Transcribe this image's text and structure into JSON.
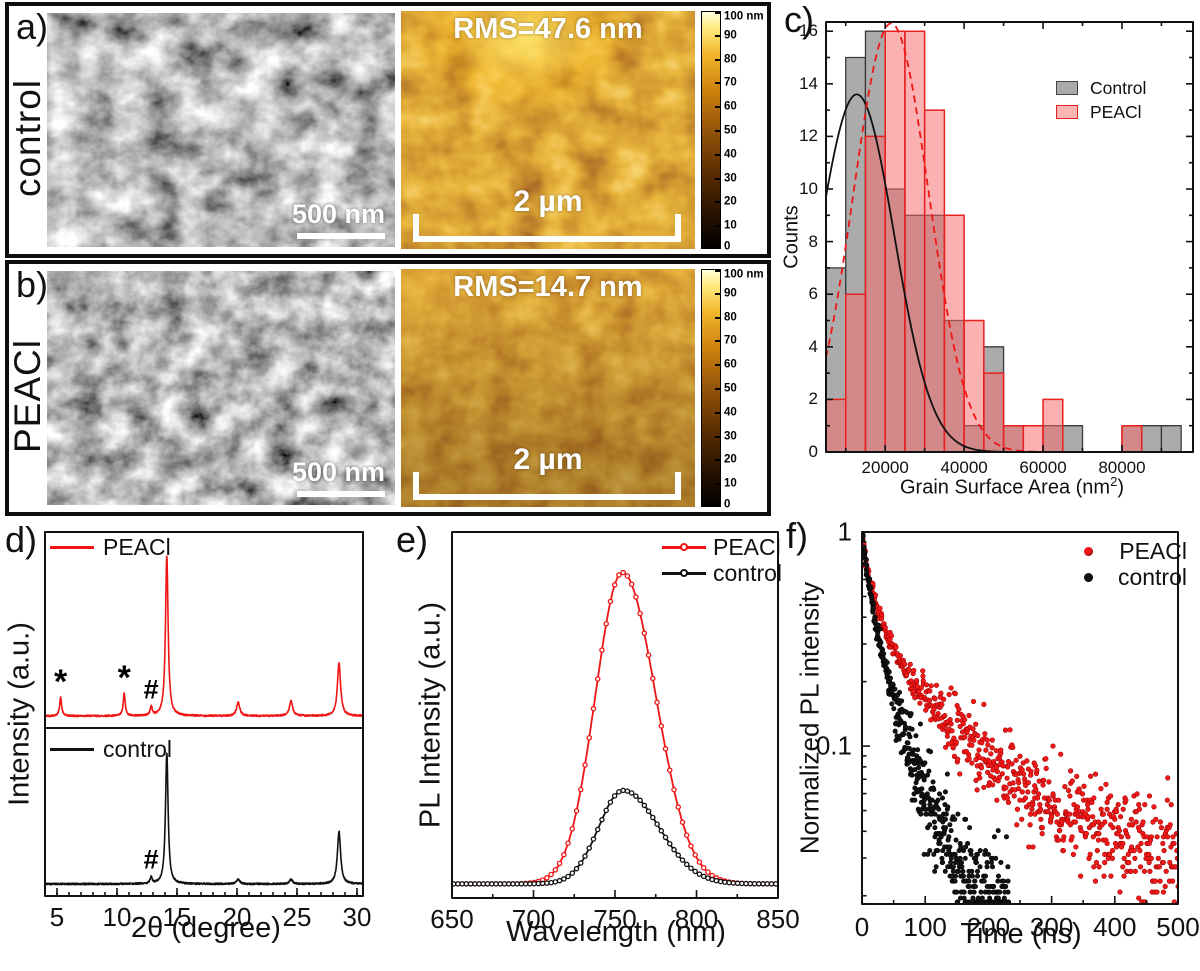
{
  "figure": {
    "background": "#ffffff",
    "accent_red": "#f01515",
    "bar_gray": "#a9a9a9",
    "bar_pink": "#f9b4b4"
  },
  "panels": {
    "a": {
      "letter": "a)",
      "side_label": "control",
      "sem_scalebar": "500 nm",
      "afm_rms": "RMS=47.6 nm",
      "afm_scalebar": "2 µm"
    },
    "b": {
      "letter": "b)",
      "side_label": "PEACl",
      "sem_scalebar": "500 nm",
      "afm_rms": "RMS=14.7 nm",
      "afm_scalebar": "2 µm"
    },
    "colorbar": {
      "ticks": [
        "100 nm",
        "90",
        "80",
        "70",
        "60",
        "50",
        "40",
        "30",
        "20",
        "10",
        "0"
      ]
    },
    "c": {
      "letter": "c)",
      "ylabel": "Counts",
      "xlabel_pre": "Grain Surface Area (nm",
      "xlabel_sup": "2",
      "xlabel_post": ")",
      "legend": [
        "Control",
        "PEACl"
      ]
    },
    "d": {
      "letter": "d)",
      "ylabel": "Intensity (a.u.)",
      "xlabel": "2θ (degree)",
      "legend_top": "PEACl",
      "legend_bottom": "control"
    },
    "e": {
      "letter": "e)",
      "ylabel": "PL Intensity (a.u.)",
      "xlabel": "Wavelength (nm)",
      "legend": [
        "PEACl",
        "control"
      ]
    },
    "f": {
      "letter": "f)",
      "ylabel": "Normalized PL intensity",
      "xlabel": "Time (ns)",
      "legend": [
        "PEACl",
        "control"
      ]
    }
  },
  "chart_data": [
    {
      "panel": "c",
      "type": "bar",
      "subtype": "histogram-with-gaussian-fits",
      "title": "",
      "xlabel": "Grain Surface Area (nm2)",
      "ylabel": "Counts",
      "bin_start": 5000,
      "bin_width": 5000,
      "series": [
        {
          "name": "Control",
          "color": "#a9a9a9",
          "counts": [
            7,
            15,
            16,
            10,
            9,
            9,
            5,
            1,
            4,
            1,
            0,
            1,
            1,
            0,
            0,
            1,
            1,
            1
          ]
        },
        {
          "name": "PEACl",
          "color": "#f9b4b4",
          "counts": [
            2,
            6,
            12,
            16,
            16,
            13,
            9,
            5,
            3,
            1,
            1,
            2,
            0,
            0,
            0,
            1,
            0,
            0
          ]
        }
      ],
      "fits": [
        {
          "name": "Control",
          "color": "#111111",
          "style": "solid",
          "mu": 12800,
          "sigma": 9500,
          "amp": 13.6
        },
        {
          "name": "PEACl",
          "color": "#f01515",
          "style": "dashed",
          "mu": 21500,
          "sigma": 9500,
          "amp": 16.3
        }
      ],
      "xticks": [
        20000,
        40000,
        60000,
        80000
      ],
      "xminors": [
        10000,
        30000,
        50000,
        70000,
        90000
      ],
      "yticks": [
        0,
        2,
        4,
        6,
        8,
        10,
        12,
        14,
        16
      ],
      "xlim": [
        5000,
        98000
      ],
      "ylim": [
        0,
        16.35
      ],
      "legend_pos": "upper-right",
      "grid": false
    },
    {
      "panel": "d",
      "type": "line",
      "subtype": "xrd-stacked",
      "xlabel": "2θ (degree)",
      "ylabel": "Intensity (a.u.)",
      "xticks": [
        5,
        10,
        15,
        20,
        25,
        30
      ],
      "xlim": [
        4,
        30.5
      ],
      "series": [
        {
          "name": "PEACl",
          "color": "#f01515",
          "panel_pos": "top",
          "peaks": [
            {
              "x": 5.3,
              "h": 0.115,
              "mark": "*"
            },
            {
              "x": 10.6,
              "h": 0.14,
              "mark": "*"
            },
            {
              "x": 12.85,
              "h": 0.055,
              "mark": "#"
            },
            {
              "x": 14.15,
              "h": 1.0
            },
            {
              "x": 20.1,
              "h": 0.085
            },
            {
              "x": 24.5,
              "h": 0.095
            },
            {
              "x": 28.5,
              "h": 0.33
            }
          ]
        },
        {
          "name": "control",
          "color": "#111111",
          "panel_pos": "bottom",
          "peaks": [
            {
              "x": 12.85,
              "h": 0.05,
              "mark": "#"
            },
            {
              "x": 14.15,
              "h": 1.0
            },
            {
              "x": 20.1,
              "h": 0.035
            },
            {
              "x": 24.5,
              "h": 0.035
            },
            {
              "x": 28.5,
              "h": 0.4
            }
          ]
        }
      ]
    },
    {
      "panel": "e",
      "type": "line",
      "subtype": "pl-spectrum",
      "xlabel": "Wavelength (nm)",
      "ylabel": "PL Intensity (a.u.)",
      "xticks": [
        650,
        700,
        750,
        800,
        850
      ],
      "xminors": [
        675,
        725,
        775,
        825
      ],
      "xlim": [
        650,
        850
      ],
      "series": [
        {
          "name": "PEACl",
          "color": "#f01515",
          "peak_nm": 754.5,
          "amplitude": 0.9,
          "sigma_left": 16.5,
          "sigma_right": 20.5
        },
        {
          "name": "control",
          "color": "#111111",
          "peak_nm": 755,
          "amplitude": 0.27,
          "sigma_left": 15,
          "sigma_right": 22
        }
      ]
    },
    {
      "panel": "f",
      "type": "scatter",
      "subtype": "trpl-decay",
      "yscale": "log",
      "xlabel": "Time (ns)",
      "ylabel": "Normalized PL intensity",
      "xticks": [
        0,
        100,
        200,
        300,
        400,
        500
      ],
      "xminors": [
        50,
        150,
        250,
        350,
        450
      ],
      "yticks": [
        1,
        0.1
      ],
      "xlim": [
        0,
        500
      ],
      "ylim": [
        0.0183,
        1
      ],
      "series": [
        {
          "name": "PEACl",
          "color": "#f01515",
          "decay": [
            [
              0,
              1
            ],
            [
              8,
              0.68
            ],
            [
              20,
              0.48
            ],
            [
              35,
              0.355
            ],
            [
              50,
              0.285
            ],
            [
              70,
              0.225
            ],
            [
              90,
              0.185
            ],
            [
              110,
              0.155
            ],
            [
              140,
              0.125
            ],
            [
              170,
              0.102
            ],
            [
              200,
              0.086
            ],
            [
              240,
              0.069
            ],
            [
              280,
              0.058
            ],
            [
              320,
              0.049
            ],
            [
              360,
              0.043
            ],
            [
              400,
              0.038
            ],
            [
              440,
              0.034
            ],
            [
              500,
              0.03
            ]
          ]
        },
        {
          "name": "control",
          "color": "#111111",
          "decay": [
            [
              0,
              1
            ],
            [
              5,
              0.75
            ],
            [
              15,
              0.48
            ],
            [
              25,
              0.33
            ],
            [
              40,
              0.215
            ],
            [
              55,
              0.15
            ],
            [
              70,
              0.108
            ],
            [
              85,
              0.08
            ],
            [
              100,
              0.06
            ],
            [
              115,
              0.047
            ],
            [
              130,
              0.037
            ],
            [
              150,
              0.028
            ],
            [
              170,
              0.023
            ],
            [
              195,
              0.0195
            ],
            [
              232,
              0.0185
            ]
          ]
        }
      ]
    }
  ]
}
